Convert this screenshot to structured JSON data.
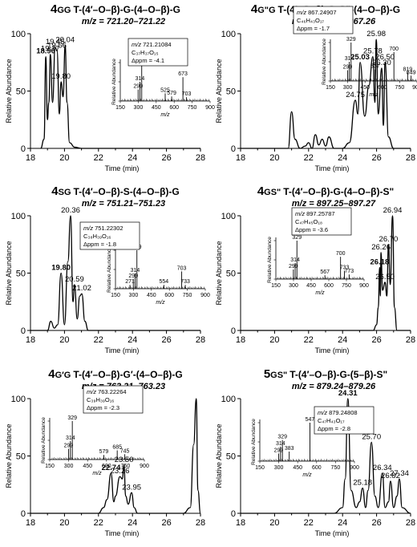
{
  "axis_labels": {
    "xlabel": "Time (min)",
    "ylabel": "Relative Abundance",
    "inset_xlabel": "m/z",
    "inset_ylabel": "Relative Abundance"
  },
  "chart_data": [
    {
      "type": "line",
      "title_prefix": "4",
      "title_code": "GG",
      "title_rest": "T-(4′–O–β)-G-(4–O–β)-G",
      "subtitle": "m/z = 721.20–721.22",
      "xlim": [
        18,
        28
      ],
      "ylim": [
        0,
        100
      ],
      "xticks": [
        18,
        20,
        22,
        24,
        26,
        28
      ],
      "yticks": [
        0,
        50,
        100
      ],
      "x": [
        18.6,
        18.8,
        18.9,
        19.0,
        19.08,
        19.17,
        19.3,
        19.45,
        19.56,
        19.7,
        19.8,
        19.92,
        20.04,
        20.15,
        20.3,
        20.6,
        21.0,
        22.0,
        24.0,
        26.0,
        28.0
      ],
      "y": [
        0,
        8,
        80,
        25,
        40,
        82,
        40,
        88,
        85,
        30,
        58,
        45,
        90,
        40,
        5,
        1,
        0,
        0,
        0,
        0,
        0
      ],
      "peak_labels": [
        {
          "label": "18.90",
          "x": 18.9,
          "y": 80,
          "bold": true
        },
        {
          "label": "19.17",
          "x": 19.17,
          "y": 82
        },
        {
          "label": "19.45",
          "x": 19.45,
          "y": 88
        },
        {
          "label": "19.56",
          "x": 19.56,
          "y": 85
        },
        {
          "label": "20.04",
          "x": 20.04,
          "y": 90
        },
        {
          "label": "19.80",
          "x": 19.8,
          "y": 58
        }
      ],
      "inset": {
        "mz_label": "m/z",
        "mz_value": "721.21084",
        "formula": "C37H37O15",
        "formula_display": "C₃₇H₃₇O₁₅",
        "ppm": "Δppm = -4.1",
        "xlim": [
          150,
          900
        ],
        "xticks": [
          150,
          300,
          450,
          600,
          750,
          900
        ],
        "peaks": [
          {
            "mz": 299,
            "y": 30,
            "label": "299"
          },
          {
            "mz": 314,
            "y": 50,
            "label": "314"
          },
          {
            "mz": 329,
            "y": 100,
            "label": "329"
          },
          {
            "mz": 525,
            "y": 20,
            "label": "525"
          },
          {
            "mz": 579,
            "y": 12,
            "label": "579"
          },
          {
            "mz": 673,
            "y": 62,
            "label": "673"
          },
          {
            "mz": 703,
            "y": 10,
            "label": "703"
          }
        ]
      }
    },
    {
      "type": "line",
      "title_prefix": "4",
      "title_code": "G\"G",
      "title_rest": "T-(4′–O–β)-G-G\"-(4–O–β)-G",
      "subtitle": "m/z = 867.24–867.26",
      "xlim": [
        18,
        28
      ],
      "ylim": [
        0,
        100
      ],
      "xticks": [
        18,
        20,
        22,
        24,
        26,
        28
      ],
      "yticks": [
        0,
        50,
        100
      ],
      "x": [
        18.0,
        20.8,
        21.0,
        21.2,
        21.5,
        21.8,
        22.0,
        22.2,
        22.4,
        22.6,
        22.8,
        23.0,
        23.2,
        23.5,
        24.0,
        24.4,
        24.75,
        24.9,
        25.03,
        25.3,
        25.55,
        25.78,
        25.9,
        25.98,
        26.1,
        26.3,
        26.4,
        26.5,
        26.7,
        27.0,
        28.0
      ],
      "y": [
        0,
        0,
        32,
        8,
        0,
        2,
        5,
        0,
        12,
        3,
        8,
        2,
        10,
        0,
        0,
        5,
        42,
        30,
        75,
        28,
        55,
        80,
        40,
        95,
        30,
        70,
        20,
        75,
        10,
        0,
        0
      ],
      "peak_labels": [
        {
          "label": "24.75",
          "x": 24.75,
          "y": 42
        },
        {
          "label": "25.03",
          "x": 25.03,
          "y": 75,
          "bold": true
        },
        {
          "label": "25.78",
          "x": 25.78,
          "y": 80
        },
        {
          "label": "25.98",
          "x": 25.98,
          "y": 95
        },
        {
          "label": "26.30",
          "x": 26.3,
          "y": 70
        },
        {
          "label": "26.50",
          "x": 26.5,
          "y": 75
        }
      ],
      "inset": {
        "mz_label": "m/z",
        "mz_value": "867.24907",
        "formula": "C46H43O17",
        "formula_display": "C₄₆H₄₃O₁₇",
        "ppm": "Δppm = -1.7",
        "xlim": [
          150,
          900
        ],
        "xticks": [
          150,
          300,
          450,
          600,
          750,
          900
        ],
        "peaks": [
          {
            "mz": 299,
            "y": 28,
            "label": "299"
          },
          {
            "mz": 314,
            "y": 50,
            "label": "314"
          },
          {
            "mz": 329,
            "y": 100,
            "label": "329"
          },
          {
            "mz": 537,
            "y": 30,
            "label": "537"
          },
          {
            "mz": 700,
            "y": 75,
            "label": "700"
          },
          {
            "mz": 819,
            "y": 22,
            "label": "819"
          },
          {
            "mz": 849,
            "y": 14,
            "label": "849"
          }
        ]
      }
    },
    {
      "type": "line",
      "title_prefix": "4",
      "title_code": "SG",
      "title_rest": "T-(4′–O–β)-S-(4–O–β)-G",
      "subtitle": "m/z = 751.21–751.23",
      "xlim": [
        18,
        28
      ],
      "ylim": [
        0,
        100
      ],
      "xticks": [
        18,
        20,
        22,
        24,
        26,
        28
      ],
      "yticks": [
        0,
        50,
        100
      ],
      "x": [
        18.0,
        19.0,
        19.2,
        19.4,
        19.6,
        19.8,
        20.0,
        20.2,
        20.36,
        20.5,
        20.59,
        20.75,
        20.9,
        21.02,
        21.2,
        21.4,
        22.0,
        24.0,
        26.0,
        28.0
      ],
      "y": [
        0,
        0,
        8,
        2,
        5,
        50,
        5,
        60,
        100,
        25,
        40,
        10,
        30,
        32,
        8,
        0,
        0,
        0,
        0,
        0
      ],
      "peak_labels": [
        {
          "label": "19.80",
          "x": 19.8,
          "y": 50,
          "bold": true
        },
        {
          "label": "20.36",
          "x": 20.36,
          "y": 100
        },
        {
          "label": "20.59",
          "x": 20.59,
          "y": 40
        },
        {
          "label": "21.02",
          "x": 21.02,
          "y": 32
        }
      ],
      "inset": {
        "mz_label": "m/z",
        "mz_value": "751.22302",
        "formula": "C38H39O16",
        "formula_display": "C₃₈H₃₉O₁₆",
        "ppm": "Δppm = -1.8",
        "xlim": [
          150,
          900
        ],
        "xticks": [
          150,
          300,
          450,
          600,
          750,
          900
        ],
        "peaks": [
          {
            "mz": 271,
            "y": 10,
            "label": "271"
          },
          {
            "mz": 299,
            "y": 25,
            "label": "299"
          },
          {
            "mz": 314,
            "y": 40,
            "label": "314"
          },
          {
            "mz": 329,
            "y": 100,
            "label": "329"
          },
          {
            "mz": 554,
            "y": 10,
            "label": "554"
          },
          {
            "mz": 703,
            "y": 45,
            "label": "703"
          },
          {
            "mz": 733,
            "y": 10,
            "label": "733"
          }
        ]
      }
    },
    {
      "type": "line",
      "title_prefix": "4",
      "title_code": "GS\"",
      "title_rest": "T-(4′–O–β)-G-(4–O–β)-S\"",
      "subtitle": "m/z = 897.25–897.27",
      "xlim": [
        18,
        28
      ],
      "ylim": [
        0,
        100
      ],
      "xticks": [
        18,
        20,
        22,
        24,
        26,
        28
      ],
      "yticks": [
        0,
        50,
        100
      ],
      "x": [
        18.0,
        25.8,
        26.0,
        26.1,
        26.18,
        26.22,
        26.26,
        26.35,
        26.5,
        26.6,
        26.7,
        26.8,
        26.94,
        27.05,
        27.2,
        28.0
      ],
      "y": [
        0,
        0,
        5,
        20,
        55,
        30,
        68,
        35,
        42,
        30,
        75,
        40,
        100,
        20,
        0,
        0
      ],
      "peak_labels": [
        {
          "label": "26.18",
          "x": 26.18,
          "y": 55,
          "bold": true
        },
        {
          "label": "26.26",
          "x": 26.26,
          "y": 68
        },
        {
          "label": "26.70",
          "x": 26.7,
          "y": 75
        },
        {
          "label": "26.94",
          "x": 26.94,
          "y": 100
        },
        {
          "label": "26.50",
          "x": 26.5,
          "y": 42
        }
      ],
      "inset": {
        "mz_label": "m/z",
        "mz_value": "897.25787",
        "formula": "C47H45O18",
        "formula_display": "C₄₇H₄₅O₁₈",
        "ppm": "Δppm = -3.6",
        "xlim": [
          150,
          900
        ],
        "xticks": [
          150,
          300,
          450,
          600,
          750,
          900
        ],
        "peaks": [
          {
            "mz": 299,
            "y": 25,
            "label": "299"
          },
          {
            "mz": 314,
            "y": 42,
            "label": "314"
          },
          {
            "mz": 329,
            "y": 100,
            "label": "329"
          },
          {
            "mz": 567,
            "y": 10,
            "label": "567"
          },
          {
            "mz": 700,
            "y": 58,
            "label": "700"
          },
          {
            "mz": 733,
            "y": 22,
            "label": "733"
          },
          {
            "mz": 773,
            "y": 12,
            "label": "773"
          }
        ]
      }
    },
    {
      "type": "line",
      "title_prefix": "4",
      "title_code": "G′G",
      "title_rest": "T-(4′–O–β)-G′-(4–O–β)-G",
      "subtitle": "m/z = 763.21–763.23",
      "xlim": [
        18,
        28
      ],
      "ylim": [
        0,
        100
      ],
      "xticks": [
        18,
        20,
        22,
        24,
        26,
        28
      ],
      "yticks": [
        0,
        50,
        100
      ],
      "x": [
        18.0,
        22.0,
        22.3,
        22.5,
        22.74,
        22.9,
        23.0,
        23.26,
        23.4,
        23.5,
        23.6,
        23.75,
        23.95,
        24.1,
        24.3,
        27.0,
        27.4,
        27.6,
        27.75,
        27.85,
        28.0
      ],
      "y": [
        0,
        0,
        5,
        12,
        35,
        10,
        15,
        32,
        30,
        42,
        15,
        8,
        18,
        5,
        0,
        0,
        5,
        60,
        100,
        20,
        0
      ],
      "peak_labels": [
        {
          "label": "22.74",
          "x": 22.74,
          "y": 35,
          "bold": true
        },
        {
          "label": "23.26",
          "x": 23.26,
          "y": 32
        },
        {
          "label": "23.50",
          "x": 23.5,
          "y": 42
        },
        {
          "label": "23.95",
          "x": 23.95,
          "y": 18
        }
      ],
      "inset": {
        "mz_label": "m/z",
        "mz_value": "763.22264",
        "formula": "C39H39O16",
        "formula_display": "C₃₉H₃₉O₁₆",
        "ppm": "Δppm = -2.3",
        "xlim": [
          150,
          900
        ],
        "xticks": [
          150,
          300,
          450,
          600,
          750,
          900
        ],
        "peaks": [
          {
            "mz": 299,
            "y": 28,
            "label": "299"
          },
          {
            "mz": 314,
            "y": 48,
            "label": "314"
          },
          {
            "mz": 329,
            "y": 100,
            "label": "329"
          },
          {
            "mz": 579,
            "y": 12,
            "label": "579"
          },
          {
            "mz": 685,
            "y": 24,
            "label": "685"
          },
          {
            "mz": 745,
            "y": 14,
            "label": "745"
          }
        ]
      }
    },
    {
      "type": "line",
      "title_prefix": "5",
      "title_code": "GS\"",
      "title_rest": "T-(4′–O–β)-G-(5–β)-S\"",
      "subtitle": "m/z = 879.24–879.26",
      "xlim": [
        18,
        28
      ],
      "ylim": [
        0,
        100
      ],
      "xticks": [
        18,
        20,
        22,
        24,
        26,
        28
      ],
      "yticks": [
        0,
        50,
        100
      ],
      "x": [
        18.0,
        23.5,
        24.0,
        24.15,
        24.31,
        24.5,
        24.8,
        25.0,
        25.18,
        25.35,
        25.5,
        25.7,
        25.9,
        26.1,
        26.34,
        26.5,
        26.7,
        26.82,
        27.0,
        27.2,
        27.34,
        27.5,
        28.0
      ],
      "y": [
        0,
        0,
        5,
        30,
        100,
        20,
        5,
        10,
        22,
        5,
        20,
        62,
        15,
        5,
        35,
        5,
        10,
        28,
        5,
        15,
        30,
        5,
        0
      ],
      "peak_labels": [
        {
          "label": "24.31",
          "x": 24.31,
          "y": 100,
          "bold": true
        },
        {
          "label": "25.18",
          "x": 25.18,
          "y": 22
        },
        {
          "label": "25.70",
          "x": 25.7,
          "y": 62
        },
        {
          "label": "26.34",
          "x": 26.34,
          "y": 35
        },
        {
          "label": "26.82",
          "x": 26.82,
          "y": 28
        },
        {
          "label": "27.34",
          "x": 27.34,
          "y": 30
        }
      ],
      "inset": {
        "mz_label": "m/z",
        "mz_value": "879.24808",
        "formula": "C47H43O17",
        "formula_display": "C₄₇H₄₃O₁₇",
        "ppm": "Δppm = -2.8",
        "xlim": [
          150,
          900
        ],
        "xticks": [
          150,
          300,
          450,
          600,
          750,
          900
        ],
        "peaks": [
          {
            "mz": 299,
            "y": 20,
            "label": "299"
          },
          {
            "mz": 314,
            "y": 38,
            "label": "314"
          },
          {
            "mz": 329,
            "y": 55,
            "label": "329"
          },
          {
            "mz": 383,
            "y": 25,
            "label": "383"
          },
          {
            "mz": 547,
            "y": 100,
            "label": "547"
          }
        ]
      }
    }
  ]
}
